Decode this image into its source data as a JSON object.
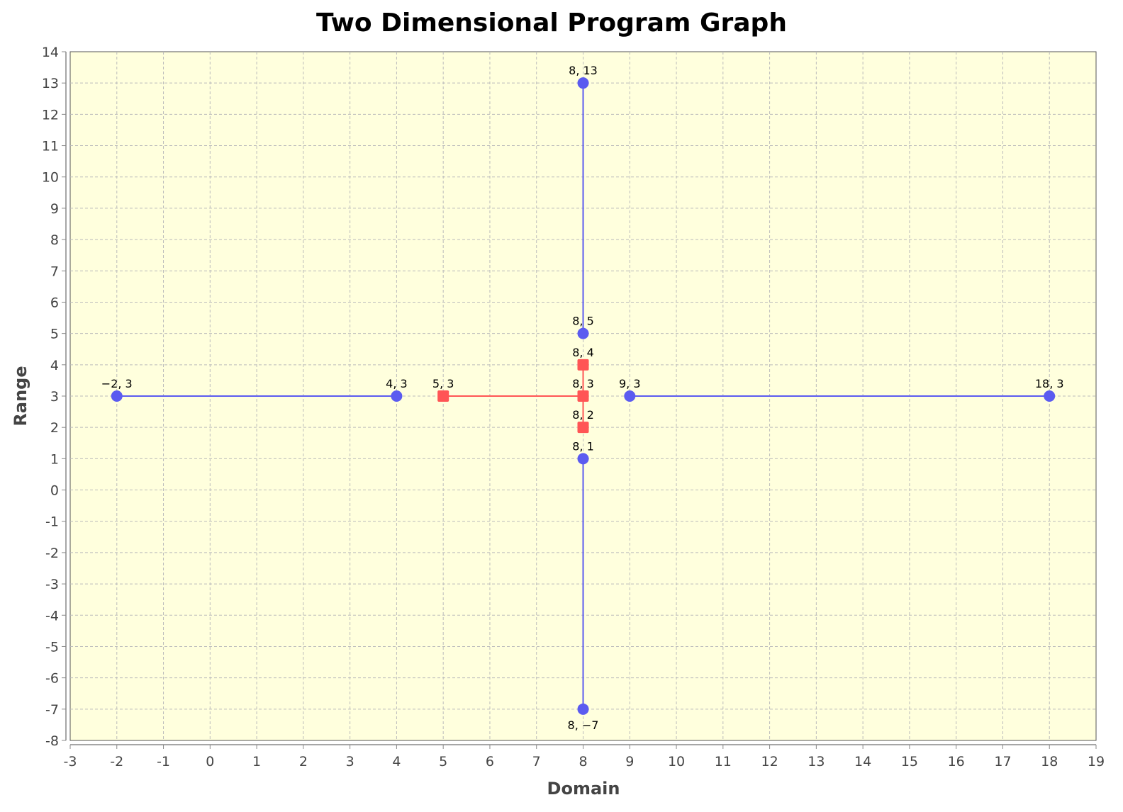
{
  "chart_data": {
    "type": "scatter",
    "title": "Two Dimensional Program Graph",
    "xlabel": "Domain",
    "ylabel": "Range",
    "xlim": [
      -3,
      19
    ],
    "ylim": [
      -8,
      14
    ],
    "x_ticks": [
      "-3",
      "-2",
      "-1",
      "0",
      "1",
      "2",
      "3",
      "4",
      "5",
      "6",
      "7",
      "8",
      "9",
      "10",
      "11",
      "12",
      "13",
      "14",
      "15",
      "16",
      "17",
      "18",
      "19"
    ],
    "y_ticks": [
      "14",
      "13",
      "12",
      "11",
      "10",
      "9",
      "8",
      "7",
      "6",
      "5",
      "4",
      "3",
      "2",
      "1",
      "0",
      "-1",
      "-2",
      "-3",
      "-4",
      "-5",
      "-6",
      "-7",
      "-8"
    ],
    "grid": true,
    "colors": {
      "plot_background": "#ffffdd",
      "blue": "#5b5bf0",
      "red": "#ff5555",
      "grid": "#bbbbbb"
    },
    "series": [
      {
        "color": "#5b5bf0",
        "marker": "circle",
        "points": [
          {
            "x": -2,
            "y": 3,
            "label": "−2, 3"
          },
          {
            "x": 4,
            "y": 3,
            "label": "4, 3"
          },
          {
            "x": 9,
            "y": 3,
            "label": "9, 3"
          },
          {
            "x": 18,
            "y": 3,
            "label": "18, 3"
          },
          {
            "x": 8,
            "y": 13,
            "label": "8, 13"
          },
          {
            "x": 8,
            "y": 5,
            "label": "8, 5"
          },
          {
            "x": 8,
            "y": 1,
            "label": "8, 1"
          },
          {
            "x": 8,
            "y": -7,
            "label": "8, −7"
          }
        ],
        "segments": [
          [
            [
              -2,
              3
            ],
            [
              4,
              3
            ]
          ],
          [
            [
              9,
              3
            ],
            [
              18,
              3
            ]
          ],
          [
            [
              8,
              13
            ],
            [
              8,
              5
            ]
          ],
          [
            [
              8,
              1
            ],
            [
              8,
              -7
            ]
          ]
        ]
      },
      {
        "color": "#ff5555",
        "marker": "square",
        "points": [
          {
            "x": 5,
            "y": 3,
            "label": "5, 3"
          },
          {
            "x": 8,
            "y": 4,
            "label": "8, 4"
          },
          {
            "x": 8,
            "y": 3,
            "label": "8, 3"
          },
          {
            "x": 8,
            "y": 2,
            "label": "8, 2"
          }
        ],
        "segments": [
          [
            [
              5,
              3
            ],
            [
              8,
              3
            ]
          ],
          [
            [
              8,
              4
            ],
            [
              8,
              2
            ]
          ]
        ]
      }
    ]
  }
}
